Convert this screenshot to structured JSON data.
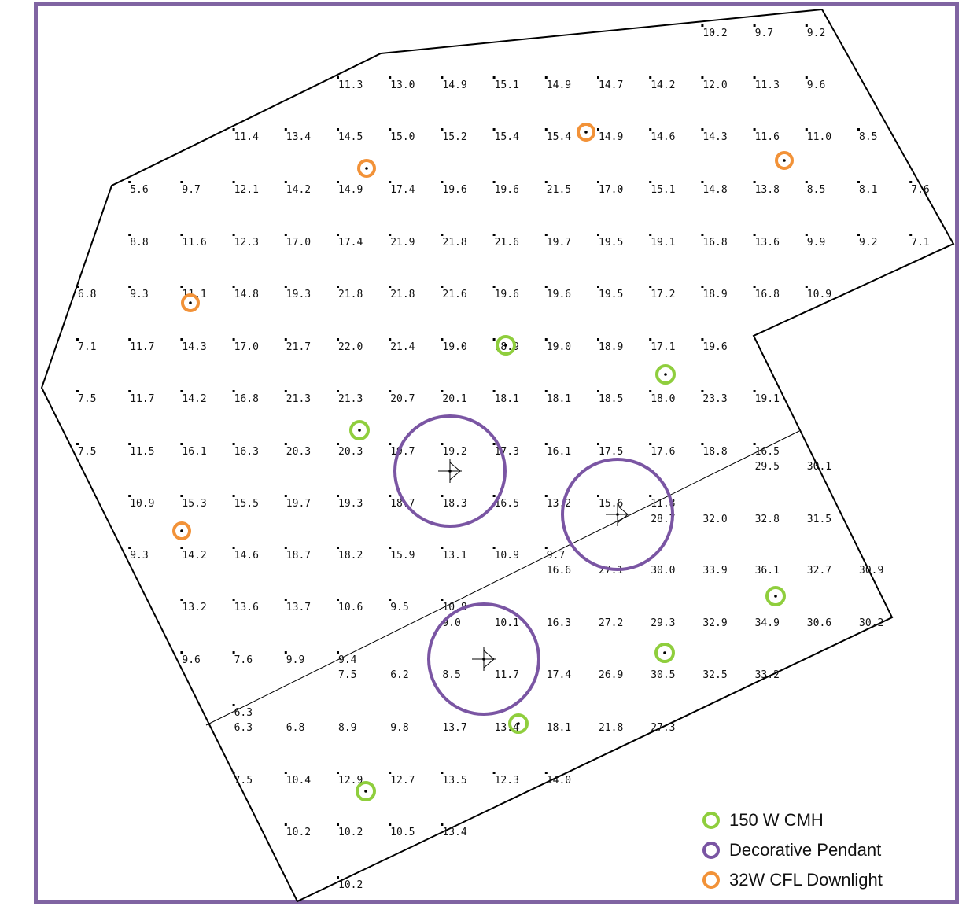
{
  "legend": [
    {
      "label": "150 W CMH",
      "color": "#8fce3d",
      "icon": "circle-outline-icon"
    },
    {
      "label": "Decorative Pendant",
      "color": "#7a55a3",
      "icon": "circle-outline-icon"
    },
    {
      "label": "32W CFL Downlight",
      "color": "#f29238",
      "icon": "circle-outline-icon"
    }
  ],
  "colors": {
    "frame": "#8064a2",
    "cmh": "#8fce3d",
    "pendant": "#7a55a3",
    "cfl": "#f29238",
    "outline": "#000000"
  },
  "readings": [
    [
      "10.2",
      "9.7",
      "9.2"
    ],
    [
      "11.3",
      "13.0",
      "14.9",
      "15.1",
      "14.9",
      "14.7",
      "14.2",
      "12.0",
      "11.3",
      "9.6"
    ],
    [
      "11.4",
      "13.4",
      "14.5",
      "15.0",
      "15.2",
      "15.4",
      "15.4",
      "14.9",
      "14.6",
      "14.3",
      "11.6",
      "11.0",
      "8.5"
    ],
    [
      "5.6",
      "9.7",
      "12.1",
      "14.2",
      "14.9",
      "17.4",
      "19.6",
      "19.6",
      "21.5",
      "17.0",
      "15.1",
      "14.8",
      "13.8",
      "8.5",
      "8.1",
      "7.6"
    ],
    [
      "8.8",
      "11.6",
      "12.3",
      "17.0",
      "17.4",
      "21.9",
      "21.8",
      "21.6",
      "19.7",
      "19.5",
      "19.1",
      "16.8",
      "13.6",
      "9.9",
      "9.2",
      "7.1"
    ],
    [
      "6.8",
      "9.3",
      "11.1",
      "14.8",
      "19.3",
      "21.8",
      "21.8",
      "21.6",
      "19.6",
      "19.6",
      "19.5",
      "17.2",
      "18.9",
      "16.8",
      "10.9"
    ],
    [
      "7.1",
      "11.7",
      "14.3",
      "17.0",
      "21.7",
      "22.0",
      "21.4",
      "19.0",
      "18.9",
      "19.0",
      "18.9",
      "17.1",
      "19.6"
    ],
    [
      "7.5",
      "11.7",
      "14.2",
      "16.8",
      "21.3",
      "21.3",
      "20.7",
      "20.1",
      "18.1",
      "18.1",
      "18.5",
      "18.0",
      "23.3",
      "19.1"
    ],
    [
      "7.5",
      "11.5",
      "16.1",
      "16.3",
      "20.3",
      "20.3",
      "19.7",
      "19.2",
      "17.3",
      "16.1",
      "17.5",
      "17.6",
      "18.8",
      "16.5"
    ],
    [
      "29.5",
      "30.1"
    ],
    [
      "10.9",
      "15.3",
      "15.5",
      "19.7",
      "19.3",
      "18.7",
      "18.3",
      "16.5",
      "13.2",
      "15.6",
      "11.8"
    ],
    [
      "28.7",
      "32.0",
      "32.8",
      "31.5"
    ],
    [
      "9.3",
      "14.2",
      "14.6",
      "18.7",
      "18.2",
      "15.9",
      "13.1",
      "10.9",
      "9.7"
    ],
    [
      "16.6",
      "27.1",
      "30.0",
      "33.9",
      "36.1",
      "32.7",
      "30.9"
    ],
    [
      "13.2",
      "13.6",
      "13.7",
      "10.6",
      "9.5",
      "10.8"
    ],
    [
      "9.0",
      "10.1",
      "16.3",
      "27.2",
      "29.3",
      "32.9",
      "34.9",
      "30.6",
      "30.2"
    ],
    [
      "9.6",
      "7.6",
      "9.9",
      "9.4"
    ],
    [
      "7.5",
      "6.2",
      "8.5",
      "11.7",
      "17.4",
      "26.9",
      "30.5",
      "32.5",
      "33.2"
    ],
    [
      "6.3"
    ],
    [
      "6.3",
      "6.8",
      "8.9",
      "9.8",
      "13.7",
      "13.4",
      "18.1",
      "21.8",
      "27.3"
    ],
    [
      "7.5",
      "10.4",
      "12.9",
      "12.7",
      "13.5",
      "12.3",
      "14.0"
    ],
    [
      "10.2",
      "10.2",
      "10.5",
      "13.4"
    ],
    [
      "10.2"
    ]
  ]
}
